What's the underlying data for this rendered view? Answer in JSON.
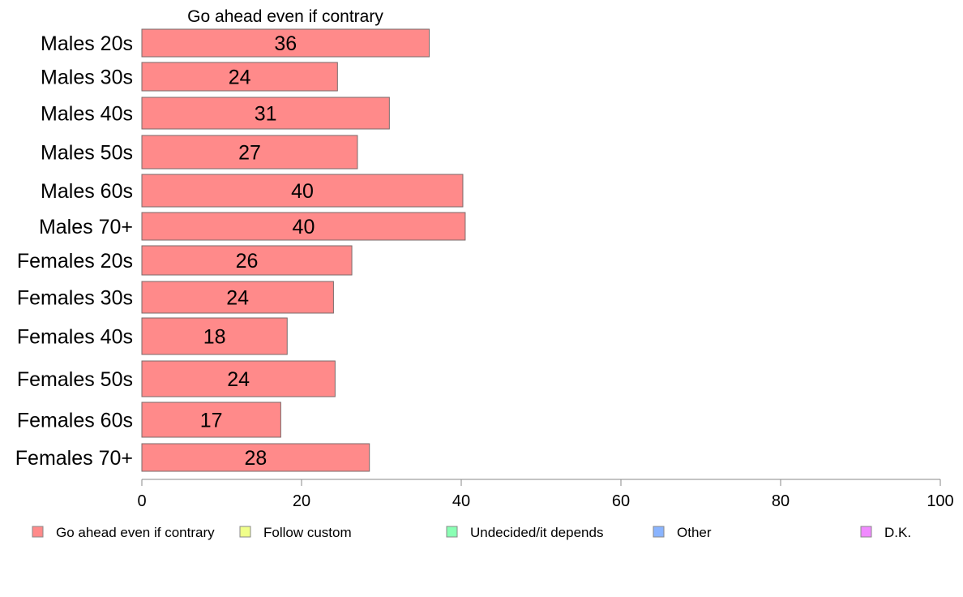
{
  "chart_data": {
    "type": "bar",
    "orientation": "horizontal",
    "title": "Go ahead even if contrary",
    "categories": [
      "Males 20s",
      "Males 30s",
      "Males 40s",
      "Males 50s",
      "Males 60s",
      "Males 70+",
      "Females 20s",
      "Females 30s",
      "Females 40s",
      "Females 50s",
      "Females 60s",
      "Females 70+"
    ],
    "series": [
      {
        "name": "Go ahead even if contrary",
        "color": "#ff8a8a",
        "values": [
          36,
          24.5,
          31,
          27,
          40.2,
          40.5,
          26.3,
          24,
          18.2,
          24.2,
          17.4,
          28.5
        ],
        "labels": [
          "36",
          "24",
          "31",
          "27",
          "40",
          "40",
          "26",
          "24",
          "18",
          "24",
          "17",
          "28"
        ]
      }
    ],
    "xlim": [
      0,
      100
    ],
    "xticks": [
      0,
      20,
      40,
      60,
      80,
      100
    ],
    "xtick_labels": [
      "0",
      "20",
      "40",
      "60",
      "80",
      "100"
    ],
    "legend": {
      "position": "bottom",
      "items": [
        {
          "label": "Go ahead even if contrary",
          "color": "#ff8a8a"
        },
        {
          "label": "Follow custom",
          "color": "#f0ff8a"
        },
        {
          "label": "Undecided/it depends",
          "color": "#8affb4"
        },
        {
          "label": "Other",
          "color": "#8ab4ff"
        },
        {
          "label": "D.K.",
          "color": "#f08aff"
        }
      ]
    }
  }
}
